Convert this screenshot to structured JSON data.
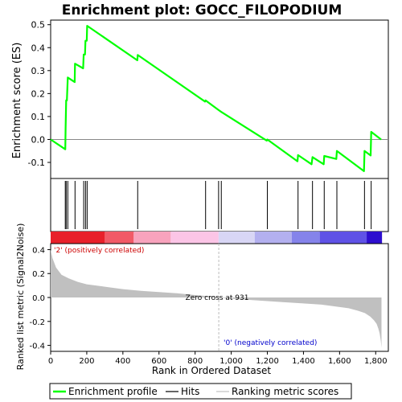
{
  "chart_data": {
    "type": "line",
    "title": "Enrichment plot: GOCC_FILOPODIUM",
    "colors": {
      "profile": "#00ff00",
      "hit": "#000000",
      "metric_fill": "#c0c0c0",
      "pos_label": "#cc0000",
      "neg_label": "#0000cc"
    },
    "top_panel": {
      "ylabel": "Enrichment score (ES)",
      "ylim": [
        -0.17,
        0.52
      ],
      "yticks": [
        -0.1,
        0.0,
        0.1,
        0.2,
        0.3,
        0.4,
        0.5
      ],
      "ytick_labels": [
        "-0.1",
        "0.0",
        "0.1",
        "0.2",
        "0.3",
        "0.4",
        "0.5"
      ],
      "series": [
        {
          "name": "Enrichment profile",
          "x": [
            0,
            81,
            83,
            86,
            90,
            95,
            133,
            135,
            180,
            183,
            190,
            193,
            200,
            202,
            480,
            482,
            855,
            858,
            930,
            945,
            1197,
            1200,
            1367,
            1370,
            1445,
            1450,
            1512,
            1515,
            1582,
            1585,
            1735,
            1738,
            1772,
            1775,
            1830
          ],
          "y": [
            0.0,
            -0.043,
            0.05,
            0.17,
            0.17,
            0.27,
            0.25,
            0.33,
            0.31,
            0.37,
            0.37,
            0.43,
            0.43,
            0.495,
            0.345,
            0.368,
            0.165,
            0.17,
            0.128,
            0.12,
            -0.005,
            0.0,
            -0.095,
            -0.068,
            -0.108,
            -0.077,
            -0.108,
            -0.072,
            -0.085,
            -0.05,
            -0.138,
            -0.05,
            -0.07,
            0.033,
            0.0
          ]
        }
      ]
    },
    "hits": {
      "name": "Hits",
      "positions": [
        81,
        86,
        95,
        135,
        183,
        193,
        202,
        482,
        858,
        930,
        945,
        1200,
        1370,
        1450,
        1515,
        1585,
        1738,
        1775
      ]
    },
    "ranking_bar": {
      "segments": [
        {
          "from": 0,
          "to": 300,
          "color": "#e8202a"
        },
        {
          "from": 300,
          "to": 460,
          "color": "#f15a67"
        },
        {
          "from": 460,
          "to": 665,
          "color": "#f8a3bd"
        },
        {
          "from": 665,
          "to": 930,
          "color": "#fbc5e6"
        },
        {
          "from": 930,
          "to": 1130,
          "color": "#d8d6f5"
        },
        {
          "from": 1130,
          "to": 1335,
          "color": "#b3b0ef"
        },
        {
          "from": 1335,
          "to": 1490,
          "color": "#8583ea"
        },
        {
          "from": 1490,
          "to": 1750,
          "color": "#5f52e6"
        },
        {
          "from": 1750,
          "to": 1835,
          "color": "#2d0ecf"
        }
      ]
    },
    "bottom_panel": {
      "ylabel": "Ranked list metric (Signal2Noise)",
      "xlabel": "Rank in Ordered Dataset",
      "ylim": [
        -0.45,
        0.45
      ],
      "yticks": [
        -0.4,
        -0.2,
        0.0,
        0.2,
        0.4
      ],
      "ytick_labels": [
        "-0.4",
        "-0.2",
        "0.0",
        "0.2",
        "0.4"
      ],
      "xlim": [
        0,
        1870
      ],
      "xticks": [
        0,
        200,
        400,
        600,
        800,
        1000,
        1200,
        1400,
        1600,
        1800
      ],
      "xtick_labels": [
        "0",
        "200",
        "400",
        "600",
        "800",
        "1,000",
        "1,200",
        "1,400",
        "1,600",
        "1,800"
      ],
      "metric": {
        "x": [
          0,
          10,
          30,
          60,
          100,
          150,
          200,
          300,
          400,
          500,
          600,
          700,
          800,
          900,
          931,
          1000,
          1100,
          1200,
          1300,
          1400,
          1500,
          1600,
          1650,
          1700,
          1740,
          1770,
          1790,
          1805,
          1815,
          1822,
          1828,
          1832
        ],
        "y": [
          0.4,
          0.33,
          0.25,
          0.19,
          0.16,
          0.13,
          0.11,
          0.09,
          0.07,
          0.055,
          0.045,
          0.035,
          0.02,
          0.008,
          0.0,
          -0.01,
          -0.02,
          -0.03,
          -0.04,
          -0.05,
          -0.06,
          -0.08,
          -0.09,
          -0.11,
          -0.13,
          -0.16,
          -0.19,
          -0.22,
          -0.26,
          -0.3,
          -0.36,
          -0.42
        ]
      },
      "zero_cross": 931,
      "zero_cross_label": "Zero cross at 931",
      "pos_label": "'2' (positively correlated)",
      "neg_label": "'0' (negatively correlated)"
    },
    "legend": {
      "placement": "bottom",
      "items": [
        {
          "name": "Enrichment profile",
          "marker": "line",
          "color": "#00ff00"
        },
        {
          "name": "Hits",
          "marker": "line",
          "color": "#000000"
        },
        {
          "name": "Ranking metric scores",
          "marker": "line",
          "color": "#c0c0c0"
        }
      ]
    }
  }
}
